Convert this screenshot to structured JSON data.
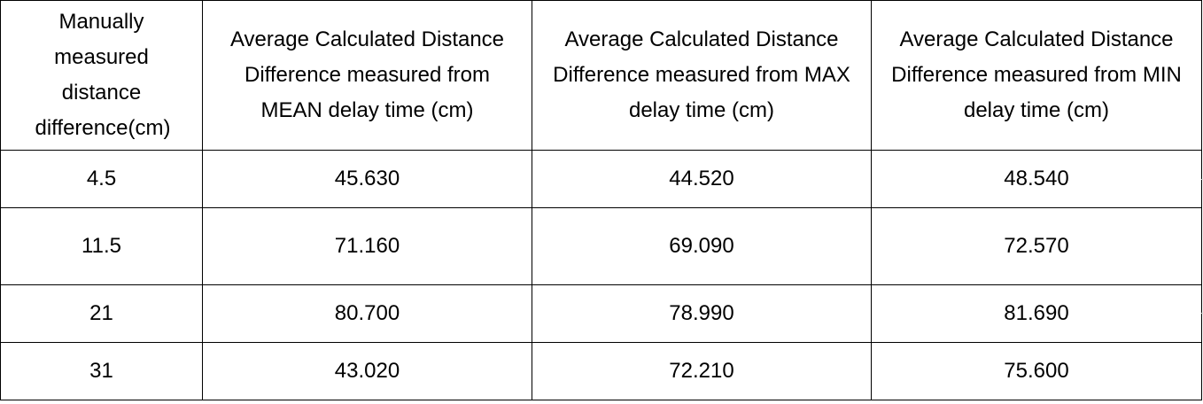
{
  "table": {
    "headers": [
      "Manually measured distance difference(cm)",
      "Average Calculated Distance Difference measured from MEAN delay time (cm)",
      "Average Calculated Distance Difference measured from MAX delay time (cm)",
      "Average Calculated Distance Difference measured from MIN delay time (cm)"
    ],
    "rows": [
      [
        "4.5",
        "45.630",
        "44.520",
        "48.540"
      ],
      [
        "11.5",
        "71.160",
        "69.090",
        "72.570"
      ],
      [
        "21",
        "80.700",
        "78.990",
        "81.690"
      ],
      [
        "31",
        "43.020",
        "72.210",
        "75.600"
      ]
    ]
  },
  "colors": {
    "border": "#000000",
    "background": "#ffffff",
    "text": "#000000"
  }
}
